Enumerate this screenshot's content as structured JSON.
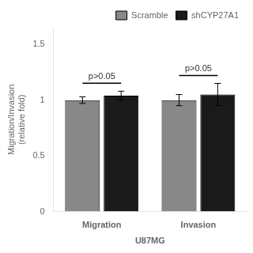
{
  "chart_data": {
    "type": "bar",
    "categories": [
      "Migration",
      "Invasion"
    ],
    "series": [
      {
        "name": "Scramble",
        "color": "#888888",
        "values": [
          1.0,
          1.0
        ],
        "errors": [
          0.03,
          0.05
        ]
      },
      {
        "name": "shCYP27A1",
        "color": "#1a1a1a",
        "values": [
          1.04,
          1.05
        ],
        "errors": [
          0.04,
          0.1
        ]
      }
    ],
    "ylabel": "Migration/Invasion\n(relative fold)",
    "xlabel": "U87MG",
    "annotations": [
      {
        "text": "p>0.05",
        "category": "Migration"
      },
      {
        "text": "p>0.05",
        "category": "Invasion"
      }
    ],
    "ylim": [
      0,
      1.65
    ],
    "yticks": [
      0,
      0.5,
      1,
      1.5
    ],
    "grid": false,
    "legend": "upper right"
  }
}
